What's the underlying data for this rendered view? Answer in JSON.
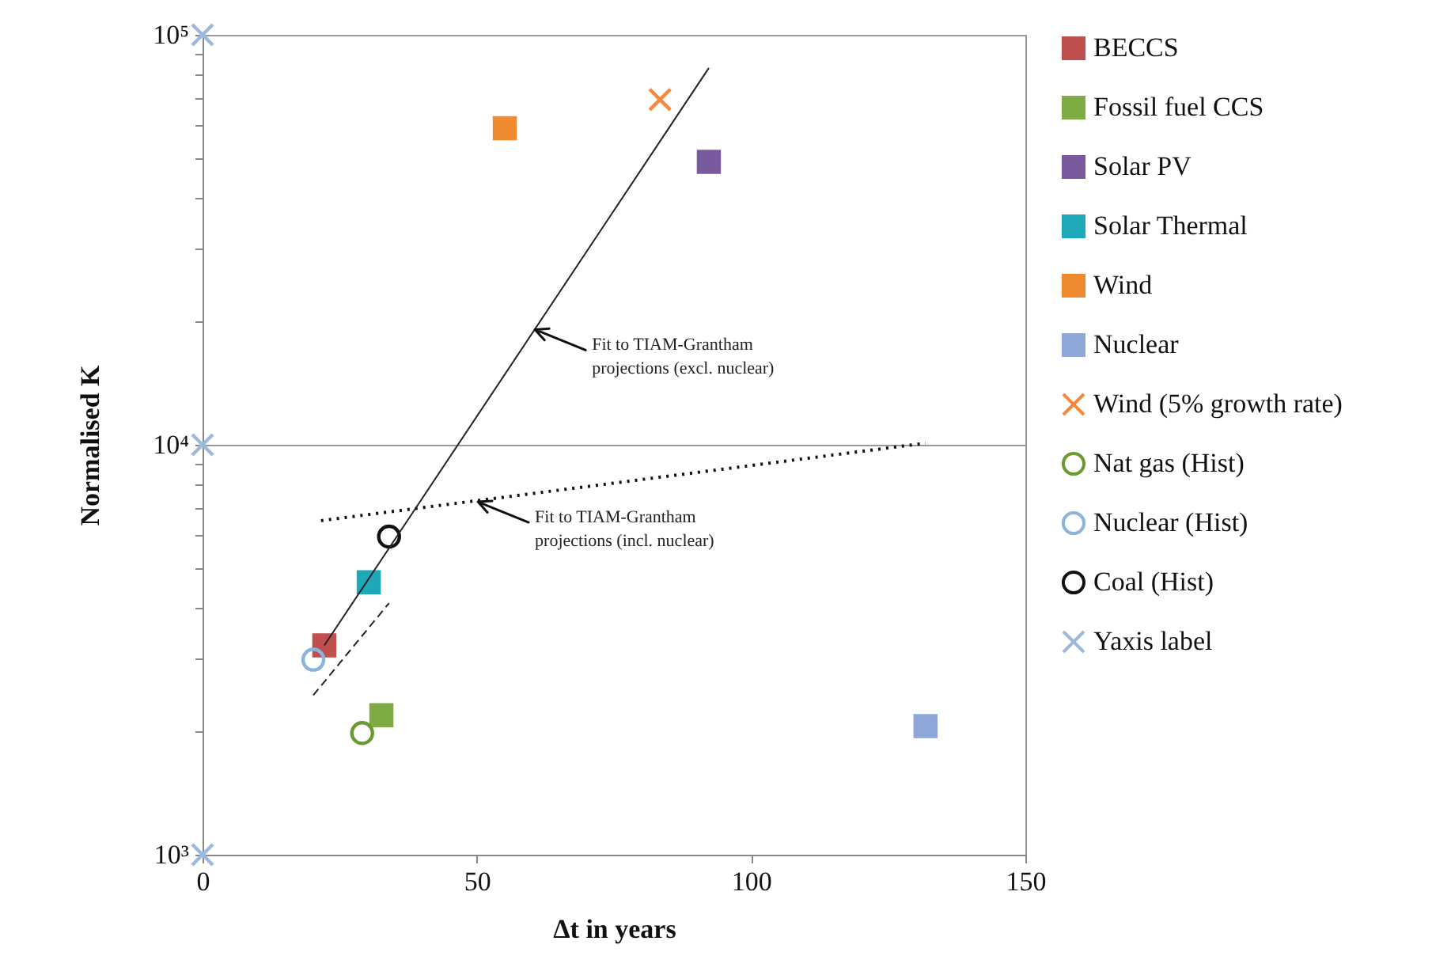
{
  "chart_data": {
    "type": "scatter",
    "xlabel": "Δt in years",
    "ylabel": "Normalised K",
    "log": "y",
    "grid": "y",
    "legend": "right",
    "xlim": [
      0,
      150
    ],
    "xticks": [
      0,
      50,
      100,
      150
    ],
    "ylim": [
      1000,
      100000
    ],
    "yticks": [
      {
        "value": 1000,
        "label": "10³"
      },
      {
        "value": 2000,
        "label": null
      },
      {
        "value": 3000,
        "label": null
      },
      {
        "value": 4000,
        "label": null
      },
      {
        "value": 5000,
        "label": null
      },
      {
        "value": 6000,
        "label": null
      },
      {
        "value": 7000,
        "label": null
      },
      {
        "value": 8000,
        "label": null
      },
      {
        "value": 9000,
        "label": null
      },
      {
        "value": 10000,
        "label": "10⁴"
      },
      {
        "value": 20000,
        "label": null
      },
      {
        "value": 30000,
        "label": null
      },
      {
        "value": 40000,
        "label": null
      },
      {
        "value": 50000,
        "label": null
      },
      {
        "value": 60000,
        "label": null
      },
      {
        "value": 70000,
        "label": null
      },
      {
        "value": 80000,
        "label": null
      },
      {
        "value": 90000,
        "label": null
      },
      {
        "value": 100000,
        "label": "10⁵"
      }
    ],
    "series": [
      {
        "name": "BECCS",
        "type": "scatter",
        "marker": "square",
        "color": "#c0504d",
        "x": [
          22.2
        ],
        "values": [
          3240
        ]
      },
      {
        "name": "Fossil fuel CCS",
        "type": "scatter",
        "marker": "square",
        "color": "#7fab45",
        "x": [
          32.6
        ],
        "values": [
          2190
        ]
      },
      {
        "name": "Solar PV",
        "type": "scatter",
        "marker": "square",
        "color": "#7a5a9e",
        "x": [
          92.3
        ],
        "values": [
          49000
        ]
      },
      {
        "name": "Solar Thermal",
        "type": "scatter",
        "marker": "square",
        "color": "#1fa8b8",
        "x": [
          30.3
        ],
        "values": [
          4620
        ]
      },
      {
        "name": "Wind",
        "type": "scatter",
        "marker": "square",
        "color": "#f08a30",
        "x": [
          55.1
        ],
        "values": [
          59200
        ]
      },
      {
        "name": "Nuclear",
        "type": "scatter",
        "marker": "square",
        "color": "#8fa6d8",
        "x": [
          131.8
        ],
        "values": [
          2060
        ]
      },
      {
        "name": "Wind (5% growth rate)",
        "type": "scatter",
        "marker": "cross",
        "color": "#f5883a",
        "x": [
          83.4
        ],
        "values": [
          69500
        ]
      },
      {
        "name": "Nat gas (Hist)",
        "type": "scatter",
        "marker": "circle",
        "color": "#6a9a30",
        "x": [
          29.1
        ],
        "values": [
          1980
        ]
      },
      {
        "name": "Nuclear (Hist)",
        "type": "scatter",
        "marker": "circle",
        "color": "#8ab4dc",
        "x": [
          20.2
        ],
        "values": [
          2990
        ]
      },
      {
        "name": "Coal (Hist)",
        "type": "scatter",
        "marker": "circle",
        "color": "#111111",
        "x": [
          34.0
        ],
        "values": [
          5970
        ]
      },
      {
        "name": "Yaxis label",
        "type": "scatter",
        "marker": "cross",
        "color": "#9db8dc",
        "x": [
          0,
          0,
          0
        ],
        "values": [
          1000,
          10000,
          100000
        ]
      },
      {
        "type": "line",
        "line_style": "solid",
        "color": "#222222",
        "x": [
          22.2,
          92.3
        ],
        "values": [
          3240,
          83000
        ]
      },
      {
        "type": "line",
        "line_style": "dotted",
        "color": "#111111",
        "x": [
          21.6,
          131.8
        ],
        "values": [
          6530,
          10090
        ]
      },
      {
        "type": "line",
        "line_style": "dashed",
        "color": "#222222",
        "x": [
          20.2,
          34.0
        ],
        "values": [
          2450,
          4110
        ]
      }
    ],
    "annotations": [
      {
        "text": "Fit to TIAM-Grantham projections (excl. nuclear)",
        "x": 60.6,
        "y": 19100
      },
      {
        "text": "Fit to TIAM-Grantham projections (incl. nuclear)",
        "x": 50.2,
        "y": 7260
      }
    ]
  }
}
